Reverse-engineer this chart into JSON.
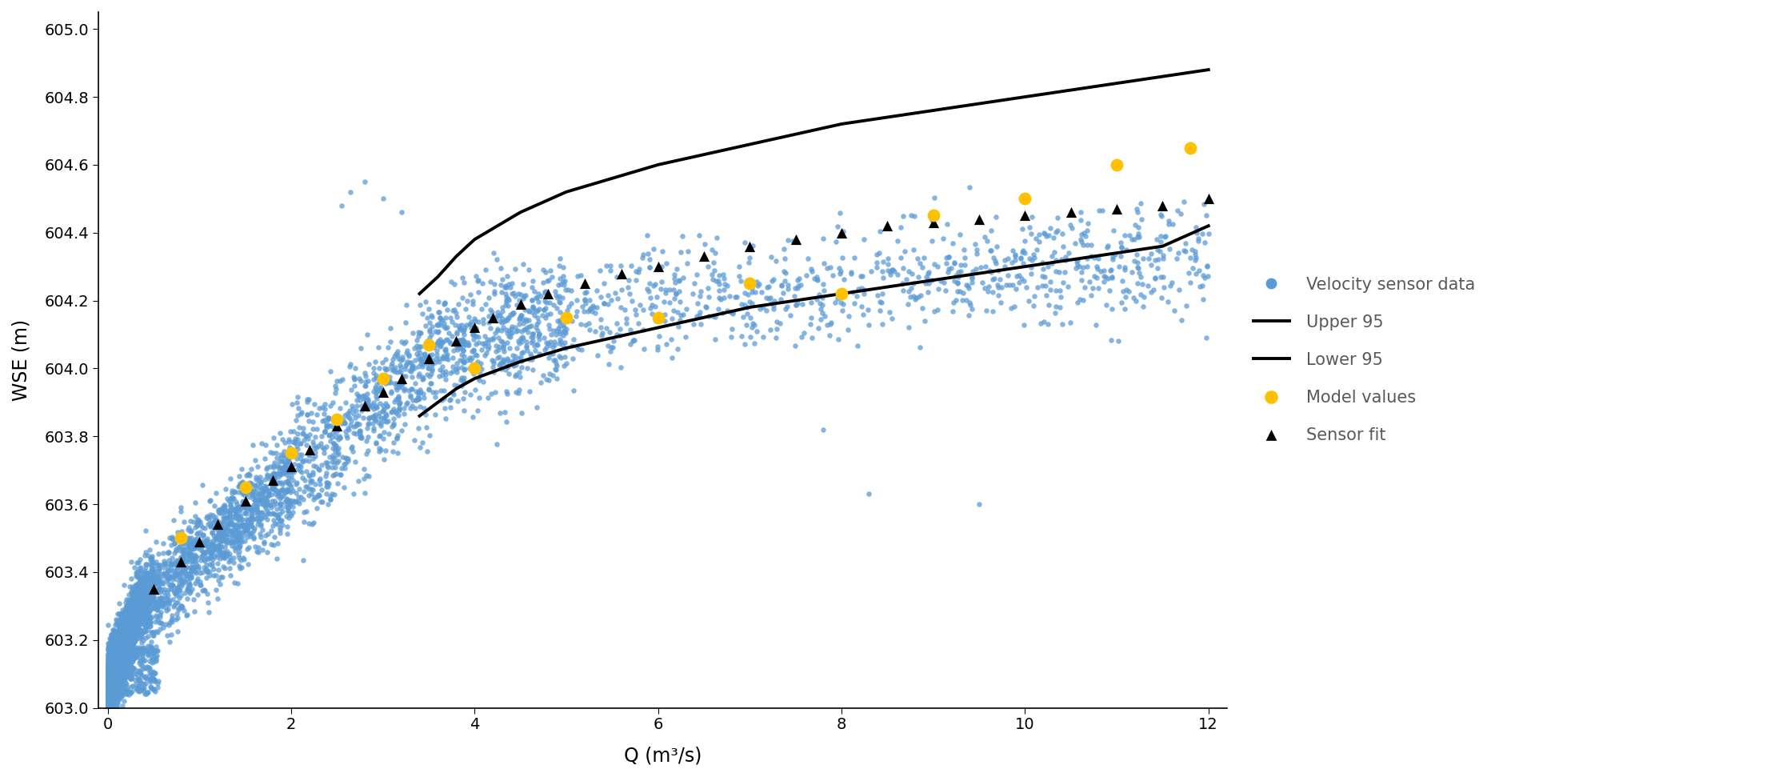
{
  "title": "",
  "xlabel": "Q (m³/s)",
  "ylabel": "WSE (m)",
  "xlim": [
    -0.1,
    12.2
  ],
  "ylim": [
    603.0,
    605.05
  ],
  "yticks": [
    603.0,
    603.2,
    603.4,
    603.6,
    603.8,
    604.0,
    604.2,
    604.4,
    604.6,
    604.8,
    605.0
  ],
  "xticks": [
    0,
    2,
    4,
    6,
    8,
    10,
    12
  ],
  "sensor_color": "#5B9BD5",
  "model_color": "#FFC000",
  "fit_color": "#000000",
  "line_color": "#000000",
  "legend_labels": [
    "Velocity sensor data",
    "Upper 95",
    "Lower 95",
    "Model values",
    "Sensor fit"
  ],
  "background_color": "#ffffff",
  "sensor_alpha": 0.75,
  "sensor_size": 22,
  "model_size": 130,
  "fit_size": 90,
  "line_width": 2.8,
  "model_values_Q": [
    0.8,
    1.5,
    2.0,
    2.5,
    3.0,
    3.5,
    4.0,
    5.0,
    6.0,
    7.0,
    8.0,
    9.0,
    10.0,
    11.0,
    11.8
  ],
  "model_values_WSE": [
    603.5,
    603.65,
    603.75,
    603.85,
    603.97,
    604.07,
    604.0,
    604.15,
    604.15,
    604.25,
    604.22,
    604.45,
    604.5,
    604.6,
    604.65
  ],
  "sensor_fit_Q": [
    0.5,
    0.8,
    1.0,
    1.2,
    1.5,
    1.8,
    2.0,
    2.2,
    2.5,
    2.8,
    3.0,
    3.2,
    3.5,
    3.8,
    4.0,
    4.2,
    4.5,
    4.8,
    5.2,
    5.6,
    6.0,
    6.5,
    7.0,
    7.5,
    8.0,
    8.5,
    9.0,
    9.5,
    10.0,
    10.5,
    11.0,
    11.5,
    12.0
  ],
  "sensor_fit_WSE": [
    603.35,
    603.43,
    603.49,
    603.54,
    603.61,
    603.67,
    603.71,
    603.76,
    603.83,
    603.89,
    603.93,
    603.97,
    604.03,
    604.08,
    604.12,
    604.15,
    604.19,
    604.22,
    604.25,
    604.28,
    604.3,
    604.33,
    604.36,
    604.38,
    604.4,
    604.42,
    604.43,
    604.44,
    604.45,
    604.46,
    604.47,
    604.48,
    604.5
  ],
  "upper95_Q": [
    3.4,
    3.6,
    3.8,
    4.0,
    4.5,
    5.0,
    5.5,
    6.0,
    6.5,
    7.0,
    7.5,
    8.0,
    8.5,
    9.0,
    9.5,
    10.0,
    10.5,
    11.0,
    11.5,
    12.0
  ],
  "upper95_WSE": [
    604.22,
    604.27,
    604.33,
    604.38,
    604.46,
    604.52,
    604.56,
    604.6,
    604.63,
    604.66,
    604.69,
    604.72,
    604.74,
    604.76,
    604.78,
    604.8,
    604.82,
    604.84,
    604.86,
    604.88
  ],
  "lower95_Q": [
    3.4,
    3.6,
    3.8,
    4.0,
    4.5,
    5.0,
    5.5,
    6.0,
    6.5,
    7.0,
    7.5,
    8.0,
    8.5,
    9.0,
    9.5,
    10.0,
    10.5,
    11.0,
    11.5,
    12.0
  ],
  "lower95_WSE": [
    603.86,
    603.9,
    603.94,
    603.97,
    604.02,
    604.06,
    604.09,
    604.12,
    604.15,
    604.18,
    604.2,
    604.22,
    604.24,
    604.26,
    604.28,
    604.3,
    604.32,
    604.34,
    604.36,
    604.42
  ],
  "figsize": [
    22.14,
    9.71
  ],
  "dpi": 100
}
